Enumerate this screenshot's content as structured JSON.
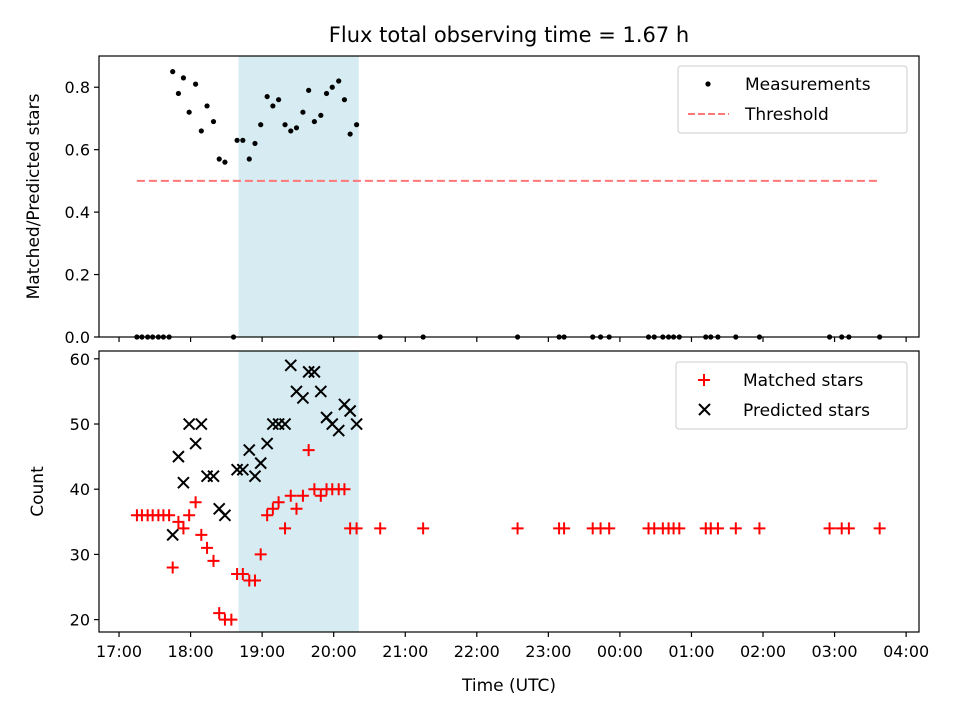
{
  "figure": {
    "title": "Flux total observing time = 1.67 h",
    "xlabel": "Time (UTC)",
    "x_tick_labels": [
      "17:00",
      "18:00",
      "19:00",
      "20:00",
      "21:00",
      "22:00",
      "23:00",
      "00:00",
      "01:00",
      "02:00",
      "03:00",
      "04:00"
    ],
    "highlight_color": "#add8e6"
  },
  "chart_data": [
    {
      "type": "scatter",
      "ylabel": "Matched/Predicted stars",
      "ylim": [
        0,
        0.9
      ],
      "y_ticks": [
        "0.0",
        "0.2",
        "0.4",
        "0.6",
        "0.8"
      ],
      "xlim_hours": [
        16.72,
        28.18
      ],
      "highlight_span_hours": [
        18.67,
        20.35
      ],
      "legend_position": "top-right",
      "series": [
        {
          "name": "Measurements",
          "marker": "dot",
          "color": "#000000",
          "x": [
            17.25,
            17.32,
            17.4,
            17.47,
            17.55,
            17.62,
            17.7,
            17.75,
            17.83,
            17.9,
            17.98,
            18.07,
            18.15,
            18.23,
            18.32,
            18.4,
            18.48,
            18.6,
            18.65,
            18.73,
            18.82,
            18.9,
            18.98,
            19.07,
            19.15,
            19.23,
            19.32,
            19.4,
            19.48,
            19.57,
            19.65,
            19.73,
            19.82,
            19.9,
            19.98,
            20.07,
            20.15,
            20.23,
            20.32,
            20.65,
            21.25,
            22.57,
            23.15,
            23.22,
            23.62,
            23.73,
            23.85,
            24.4,
            24.48,
            24.6,
            24.68,
            24.75,
            24.83,
            25.2,
            25.27,
            25.37,
            25.62,
            25.95,
            26.93,
            27.1,
            27.2,
            27.63
          ],
          "y": [
            0,
            0,
            0,
            0,
            0,
            0,
            0,
            0.85,
            0.78,
            0.83,
            0.72,
            0.81,
            0.66,
            0.74,
            0.69,
            0.57,
            0.56,
            0,
            0.63,
            0.63,
            0.57,
            0.62,
            0.68,
            0.77,
            0.74,
            0.76,
            0.68,
            0.66,
            0.67,
            0.72,
            0.79,
            0.69,
            0.71,
            0.78,
            0.8,
            0.82,
            0.76,
            0.65,
            0.68,
            0,
            0,
            0,
            0,
            0,
            0,
            0,
            0,
            0,
            0,
            0,
            0,
            0,
            0,
            0,
            0,
            0,
            0,
            0,
            0,
            0,
            0,
            0
          ]
        },
        {
          "name": "Threshold",
          "marker": "dashed-line",
          "color": "#ff7777",
          "x": [
            17.25,
            27.63
          ],
          "y": [
            0.5,
            0.5
          ]
        }
      ]
    },
    {
      "type": "scatter",
      "ylabel": "Count",
      "ylim": [
        18.1,
        61.2
      ],
      "y_ticks": [
        "20",
        "30",
        "40",
        "50",
        "60"
      ],
      "xlim_hours": [
        16.72,
        28.18
      ],
      "highlight_span_hours": [
        18.67,
        20.35
      ],
      "legend_position": "top-right",
      "series": [
        {
          "name": "Matched stars",
          "marker": "plus",
          "color": "#ff0000",
          "x": [
            17.25,
            17.32,
            17.4,
            17.47,
            17.55,
            17.62,
            17.7,
            17.75,
            17.83,
            17.9,
            17.98,
            18.07,
            18.15,
            18.23,
            18.32,
            18.4,
            18.48,
            18.57,
            18.65,
            18.73,
            18.82,
            18.9,
            18.98,
            19.07,
            19.15,
            19.23,
            19.32,
            19.4,
            19.48,
            19.57,
            19.65,
            19.73,
            19.82,
            19.9,
            19.98,
            20.07,
            20.15,
            20.23,
            20.32,
            20.65,
            21.25,
            22.57,
            23.15,
            23.22,
            23.62,
            23.73,
            23.85,
            24.4,
            24.48,
            24.6,
            24.68,
            24.75,
            24.83,
            25.2,
            25.27,
            25.37,
            25.62,
            25.95,
            26.93,
            27.1,
            27.2,
            27.63
          ],
          "y": [
            36,
            36,
            36,
            36,
            36,
            36,
            36,
            28,
            35,
            34,
            36,
            38,
            33,
            31,
            29,
            21,
            20,
            20,
            27,
            27,
            26,
            26,
            30,
            36,
            37,
            38,
            34,
            39,
            37,
            39,
            46,
            40,
            39,
            40,
            40,
            40,
            40,
            34,
            34,
            34,
            34,
            34,
            34,
            34,
            34,
            34,
            34,
            34,
            34,
            34,
            34,
            34,
            34,
            34,
            34,
            34,
            34,
            34,
            34,
            34,
            34,
            34
          ]
        },
        {
          "name": "Predicted stars",
          "marker": "x",
          "color": "#000000",
          "x": [
            17.75,
            17.83,
            17.9,
            17.98,
            18.07,
            18.15,
            18.23,
            18.32,
            18.4,
            18.48,
            18.65,
            18.73,
            18.82,
            18.9,
            18.98,
            19.07,
            19.15,
            19.23,
            19.32,
            19.4,
            19.48,
            19.57,
            19.65,
            19.73,
            19.82,
            19.9,
            19.98,
            20.07,
            20.15,
            20.23,
            20.32
          ],
          "y": [
            33,
            45,
            41,
            50,
            47,
            50,
            42,
            42,
            37,
            36,
            43,
            43,
            46,
            42,
            44,
            47,
            50,
            50,
            50,
            59,
            55,
            54,
            58,
            58,
            55,
            51,
            50,
            49,
            53,
            52,
            50
          ]
        }
      ]
    }
  ]
}
